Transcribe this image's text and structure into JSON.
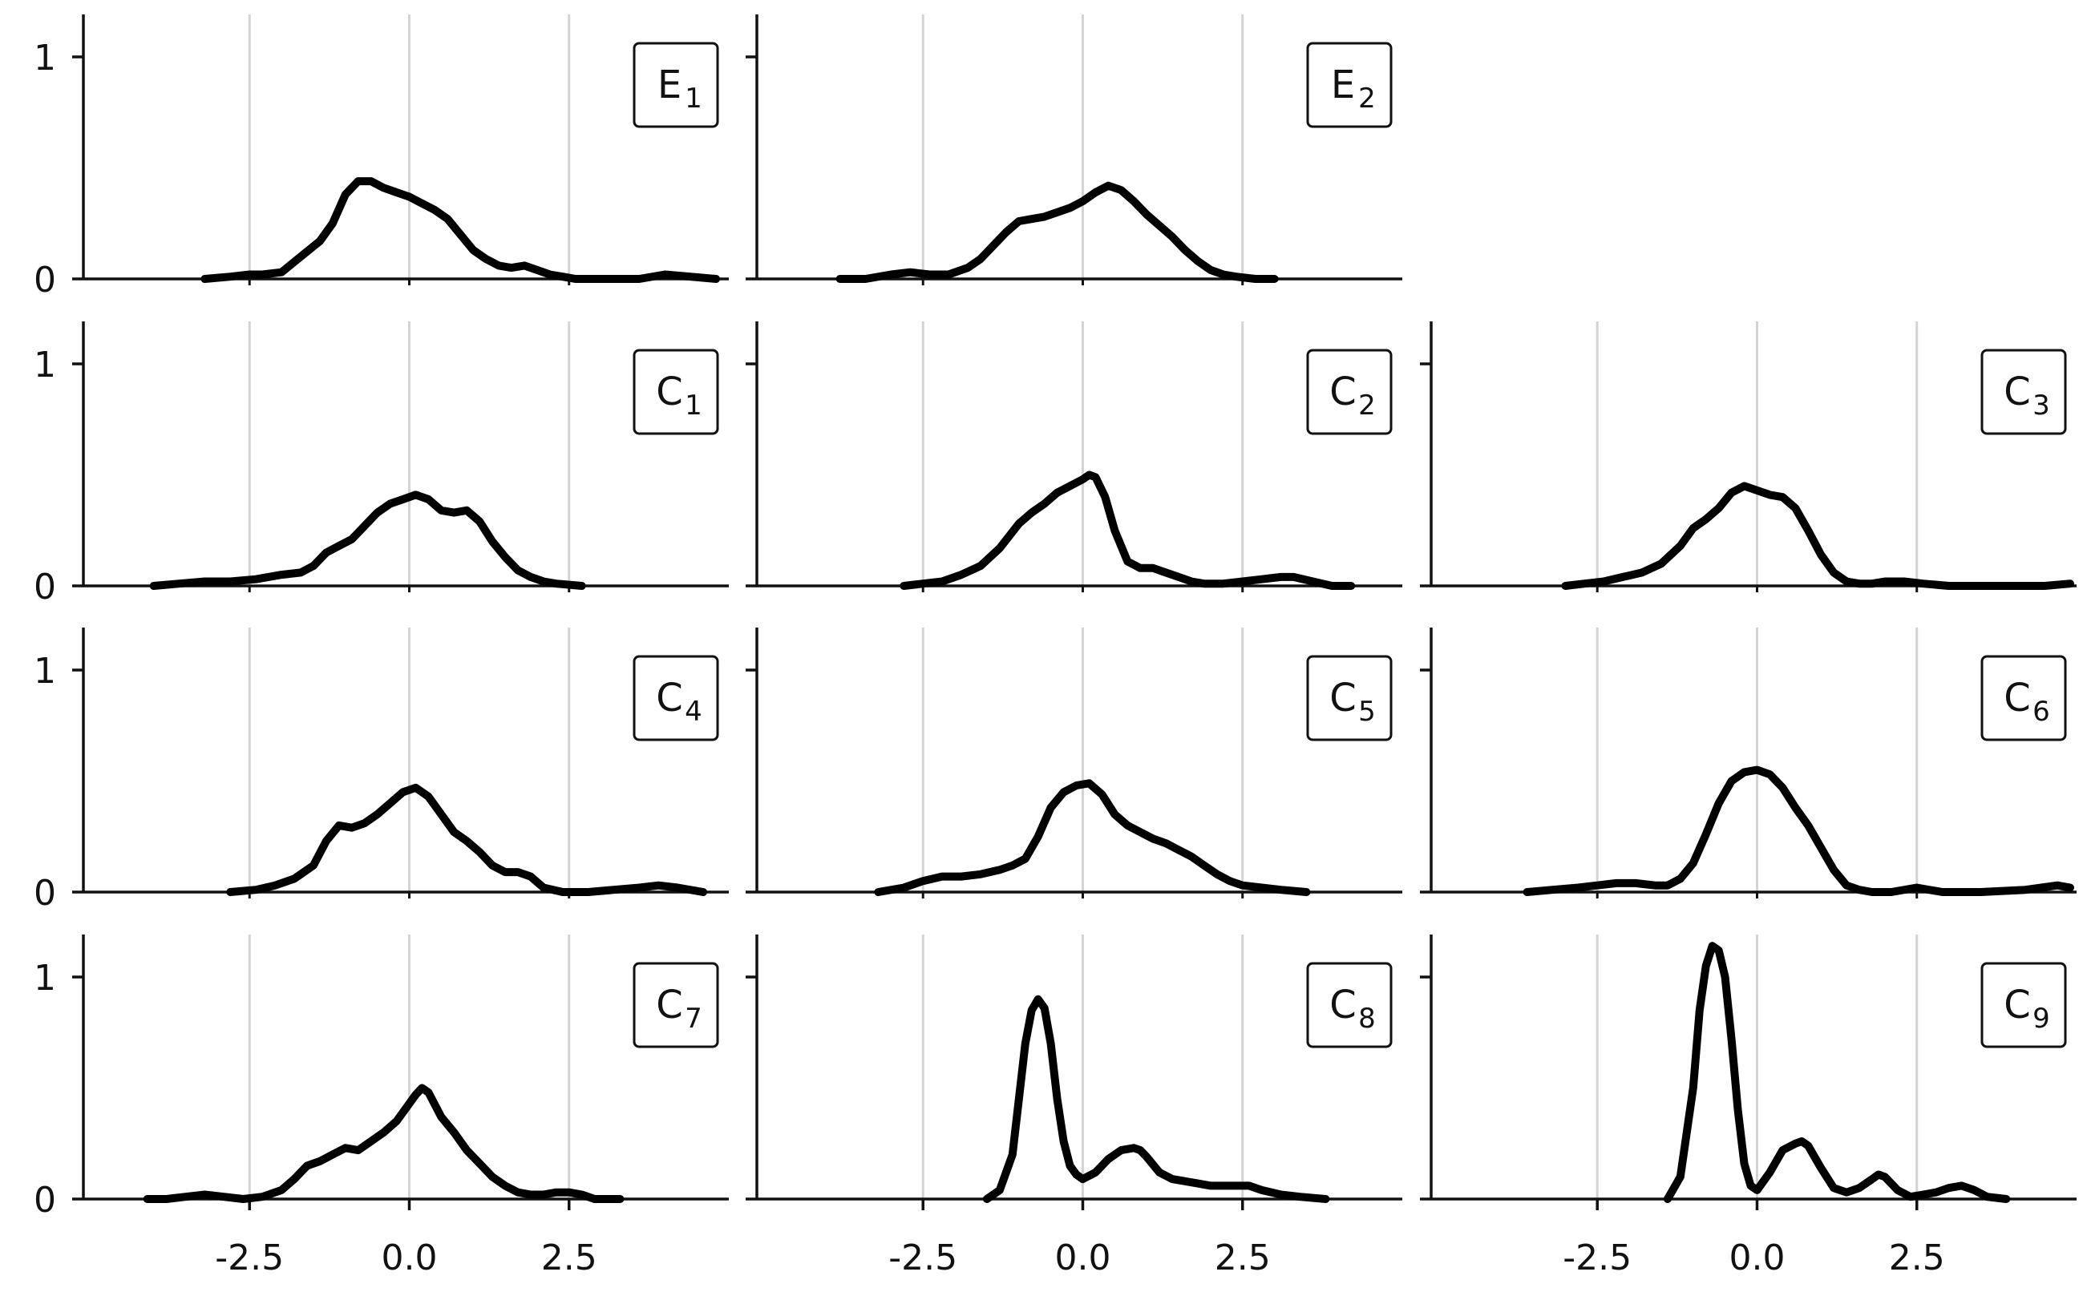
{
  "chart_data": {
    "type": "line",
    "layout": {
      "rows": 4,
      "cols": 3,
      "empty_panels": [
        "row1-col3"
      ]
    },
    "x_range": [
      -5.1,
      5.0
    ],
    "y_range": [
      0,
      1.2
    ],
    "x_ticks": [
      -2.5,
      0.0,
      2.5
    ],
    "x_tick_labels": [
      "-2.5",
      "0.0",
      "2.5"
    ],
    "y_ticks": [
      0,
      1
    ],
    "y_tick_labels": [
      "0",
      "1"
    ],
    "vertical_grid": true,
    "line_color": "#000000",
    "grid_color": "#d3d3d3",
    "panels": [
      {
        "id": "E1",
        "label": "E",
        "sub": "1",
        "row": 0,
        "col": 0,
        "x": [
          -3.2,
          -2.8,
          -2.5,
          -2.3,
          -2.0,
          -1.7,
          -1.4,
          -1.2,
          -1.0,
          -0.8,
          -0.6,
          -0.4,
          -0.2,
          0.0,
          0.2,
          0.4,
          0.6,
          0.8,
          1.0,
          1.2,
          1.4,
          1.6,
          1.8,
          2.0,
          2.2,
          2.4,
          2.6,
          2.8,
          3.2,
          3.6,
          4.0,
          4.4,
          4.8
        ],
        "y": [
          0.0,
          0.01,
          0.02,
          0.02,
          0.03,
          0.1,
          0.17,
          0.25,
          0.38,
          0.44,
          0.44,
          0.41,
          0.39,
          0.37,
          0.34,
          0.31,
          0.27,
          0.2,
          0.13,
          0.09,
          0.06,
          0.05,
          0.06,
          0.04,
          0.02,
          0.01,
          0.0,
          0.0,
          0.0,
          0.0,
          0.02,
          0.01,
          0.0
        ]
      },
      {
        "id": "E2",
        "label": "E",
        "sub": "2",
        "row": 0,
        "col": 1,
        "x": [
          -3.8,
          -3.4,
          -3.0,
          -2.7,
          -2.4,
          -2.1,
          -1.8,
          -1.6,
          -1.4,
          -1.2,
          -1.0,
          -0.8,
          -0.6,
          -0.4,
          -0.2,
          0.0,
          0.2,
          0.4,
          0.6,
          0.8,
          1.0,
          1.2,
          1.4,
          1.6,
          1.8,
          2.0,
          2.2,
          2.4,
          2.7,
          3.0
        ],
        "y": [
          0.0,
          0.0,
          0.02,
          0.03,
          0.02,
          0.02,
          0.05,
          0.09,
          0.15,
          0.21,
          0.26,
          0.27,
          0.28,
          0.3,
          0.32,
          0.35,
          0.39,
          0.42,
          0.4,
          0.35,
          0.29,
          0.24,
          0.19,
          0.13,
          0.08,
          0.04,
          0.02,
          0.01,
          0.0,
          0.0
        ]
      },
      {
        "id": "C1",
        "label": "C",
        "sub": "1",
        "row": 1,
        "col": 0,
        "x": [
          -4.0,
          -3.6,
          -3.2,
          -2.8,
          -2.4,
          -2.0,
          -1.7,
          -1.5,
          -1.3,
          -1.1,
          -0.9,
          -0.7,
          -0.5,
          -0.3,
          -0.1,
          0.1,
          0.3,
          0.5,
          0.7,
          0.9,
          1.1,
          1.3,
          1.5,
          1.7,
          1.9,
          2.1,
          2.3,
          2.7
        ],
        "y": [
          0.0,
          0.01,
          0.02,
          0.02,
          0.03,
          0.05,
          0.06,
          0.09,
          0.15,
          0.18,
          0.21,
          0.27,
          0.33,
          0.37,
          0.39,
          0.41,
          0.39,
          0.34,
          0.33,
          0.34,
          0.29,
          0.2,
          0.13,
          0.07,
          0.04,
          0.02,
          0.01,
          0.0
        ]
      },
      {
        "id": "C2",
        "label": "C",
        "sub": "2",
        "row": 1,
        "col": 1,
        "x": [
          -2.8,
          -2.5,
          -2.2,
          -1.9,
          -1.6,
          -1.3,
          -1.0,
          -0.8,
          -0.6,
          -0.4,
          -0.2,
          0.0,
          0.1,
          0.2,
          0.35,
          0.5,
          0.7,
          0.9,
          1.1,
          1.3,
          1.5,
          1.7,
          1.9,
          2.2,
          2.5,
          2.8,
          3.1,
          3.3,
          3.6,
          3.9,
          4.2
        ],
        "y": [
          0.0,
          0.01,
          0.02,
          0.05,
          0.09,
          0.17,
          0.28,
          0.33,
          0.37,
          0.42,
          0.45,
          0.48,
          0.5,
          0.49,
          0.4,
          0.25,
          0.11,
          0.08,
          0.08,
          0.06,
          0.04,
          0.02,
          0.01,
          0.01,
          0.02,
          0.03,
          0.04,
          0.04,
          0.02,
          0.0,
          0.0
        ]
      },
      {
        "id": "C3",
        "label": "C",
        "sub": "3",
        "row": 1,
        "col": 2,
        "x": [
          -3.0,
          -2.7,
          -2.4,
          -2.1,
          -1.8,
          -1.5,
          -1.2,
          -1.0,
          -0.8,
          -0.6,
          -0.4,
          -0.2,
          0.0,
          0.2,
          0.4,
          0.6,
          0.8,
          1.0,
          1.2,
          1.4,
          1.6,
          1.8,
          2.0,
          2.3,
          2.6,
          3.0,
          3.5,
          4.0,
          4.5,
          4.9
        ],
        "y": [
          0.0,
          0.01,
          0.02,
          0.04,
          0.06,
          0.1,
          0.18,
          0.26,
          0.3,
          0.35,
          0.42,
          0.45,
          0.43,
          0.41,
          0.4,
          0.35,
          0.25,
          0.14,
          0.06,
          0.02,
          0.01,
          0.01,
          0.02,
          0.02,
          0.01,
          0.0,
          0.0,
          0.0,
          0.0,
          0.01
        ]
      },
      {
        "id": "C4",
        "label": "C",
        "sub": "4",
        "row": 2,
        "col": 0,
        "x": [
          -2.8,
          -2.4,
          -2.1,
          -1.8,
          -1.5,
          -1.3,
          -1.1,
          -0.9,
          -0.7,
          -0.5,
          -0.3,
          -0.1,
          0.1,
          0.3,
          0.5,
          0.7,
          0.9,
          1.1,
          1.3,
          1.5,
          1.7,
          1.9,
          2.1,
          2.4,
          2.8,
          3.2,
          3.6,
          3.9,
          4.2,
          4.6
        ],
        "y": [
          0.0,
          0.01,
          0.03,
          0.06,
          0.12,
          0.23,
          0.3,
          0.29,
          0.31,
          0.35,
          0.4,
          0.45,
          0.47,
          0.43,
          0.35,
          0.27,
          0.23,
          0.18,
          0.12,
          0.09,
          0.09,
          0.07,
          0.02,
          0.0,
          0.0,
          0.01,
          0.02,
          0.03,
          0.02,
          0.0
        ]
      },
      {
        "id": "C5",
        "label": "C",
        "sub": "5",
        "row": 2,
        "col": 1,
        "x": [
          -3.2,
          -2.8,
          -2.5,
          -2.2,
          -1.9,
          -1.6,
          -1.3,
          -1.1,
          -0.9,
          -0.7,
          -0.5,
          -0.3,
          -0.1,
          0.1,
          0.3,
          0.5,
          0.7,
          0.9,
          1.1,
          1.3,
          1.5,
          1.7,
          1.9,
          2.1,
          2.3,
          2.5,
          2.8,
          3.1,
          3.5
        ],
        "y": [
          0.0,
          0.02,
          0.05,
          0.07,
          0.07,
          0.08,
          0.1,
          0.12,
          0.15,
          0.25,
          0.38,
          0.45,
          0.48,
          0.49,
          0.44,
          0.35,
          0.3,
          0.27,
          0.24,
          0.22,
          0.19,
          0.16,
          0.12,
          0.08,
          0.05,
          0.03,
          0.02,
          0.01,
          0.0
        ]
      },
      {
        "id": "C6",
        "label": "C",
        "sub": "6",
        "row": 2,
        "col": 2,
        "x": [
          -3.6,
          -3.2,
          -2.8,
          -2.5,
          -2.2,
          -1.9,
          -1.6,
          -1.4,
          -1.2,
          -1.0,
          -0.8,
          -0.6,
          -0.4,
          -0.2,
          0.0,
          0.2,
          0.4,
          0.6,
          0.8,
          1.0,
          1.2,
          1.4,
          1.6,
          1.8,
          2.1,
          2.5,
          2.9,
          3.5,
          4.2,
          4.7,
          4.9
        ],
        "y": [
          0.0,
          0.01,
          0.02,
          0.03,
          0.04,
          0.04,
          0.03,
          0.03,
          0.06,
          0.13,
          0.26,
          0.4,
          0.5,
          0.54,
          0.55,
          0.53,
          0.47,
          0.38,
          0.3,
          0.2,
          0.1,
          0.03,
          0.01,
          0.0,
          0.0,
          0.02,
          0.0,
          0.0,
          0.01,
          0.03,
          0.02
        ]
      },
      {
        "id": "C7",
        "label": "C",
        "sub": "7",
        "row": 3,
        "col": 0,
        "x": [
          -4.1,
          -3.8,
          -3.5,
          -3.2,
          -2.9,
          -2.6,
          -2.3,
          -2.0,
          -1.8,
          -1.6,
          -1.4,
          -1.2,
          -1.0,
          -0.8,
          -0.6,
          -0.4,
          -0.2,
          0.0,
          0.1,
          0.2,
          0.3,
          0.5,
          0.7,
          0.9,
          1.1,
          1.3,
          1.5,
          1.7,
          1.9,
          2.1,
          2.3,
          2.5,
          2.7,
          2.9,
          3.3
        ],
        "y": [
          0.0,
          0.0,
          0.01,
          0.02,
          0.01,
          0.0,
          0.01,
          0.04,
          0.09,
          0.15,
          0.17,
          0.2,
          0.23,
          0.22,
          0.26,
          0.3,
          0.35,
          0.43,
          0.47,
          0.5,
          0.48,
          0.37,
          0.3,
          0.22,
          0.16,
          0.1,
          0.06,
          0.03,
          0.02,
          0.02,
          0.03,
          0.03,
          0.02,
          0.0,
          0.0
        ]
      },
      {
        "id": "C8",
        "label": "C",
        "sub": "8",
        "row": 3,
        "col": 1,
        "x": [
          -1.5,
          -1.3,
          -1.1,
          -1.0,
          -0.9,
          -0.8,
          -0.7,
          -0.6,
          -0.5,
          -0.4,
          -0.3,
          -0.2,
          -0.1,
          0.0,
          0.2,
          0.4,
          0.6,
          0.8,
          0.9,
          1.0,
          1.2,
          1.4,
          1.6,
          1.8,
          2.0,
          2.2,
          2.4,
          2.6,
          2.8,
          3.1,
          3.4,
          3.8
        ],
        "y": [
          0.0,
          0.04,
          0.2,
          0.45,
          0.7,
          0.85,
          0.9,
          0.86,
          0.7,
          0.45,
          0.26,
          0.15,
          0.11,
          0.09,
          0.12,
          0.18,
          0.22,
          0.23,
          0.22,
          0.19,
          0.12,
          0.09,
          0.08,
          0.07,
          0.06,
          0.06,
          0.06,
          0.06,
          0.04,
          0.02,
          0.01,
          0.0
        ]
      },
      {
        "id": "C9",
        "label": "C",
        "sub": "9",
        "row": 3,
        "col": 2,
        "x": [
          -1.4,
          -1.2,
          -1.0,
          -0.9,
          -0.8,
          -0.7,
          -0.6,
          -0.5,
          -0.4,
          -0.3,
          -0.2,
          -0.1,
          0.0,
          0.2,
          0.4,
          0.6,
          0.7,
          0.8,
          1.0,
          1.2,
          1.4,
          1.6,
          1.8,
          1.9,
          2.0,
          2.2,
          2.4,
          2.6,
          2.8,
          3.0,
          3.2,
          3.4,
          3.6,
          3.9
        ],
        "y": [
          0.0,
          0.1,
          0.5,
          0.85,
          1.05,
          1.14,
          1.12,
          1.0,
          0.72,
          0.4,
          0.16,
          0.06,
          0.04,
          0.12,
          0.22,
          0.25,
          0.26,
          0.24,
          0.14,
          0.05,
          0.03,
          0.05,
          0.09,
          0.11,
          0.1,
          0.04,
          0.01,
          0.02,
          0.03,
          0.05,
          0.06,
          0.04,
          0.01,
          0.0
        ]
      }
    ]
  }
}
